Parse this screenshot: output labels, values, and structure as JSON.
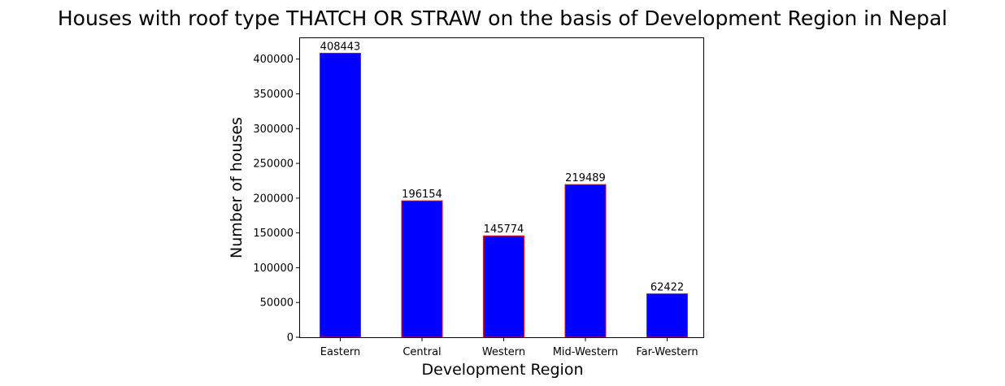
{
  "chart_data": {
    "type": "bar",
    "title": "Houses with roof type THATCH OR STRAW on the basis of Development Region in Nepal",
    "xlabel": "Development Region",
    "ylabel": "Number of houses",
    "categories": [
      "Eastern",
      "Central",
      "Western",
      "Mid-Western",
      "Far-Western"
    ],
    "values": [
      408443,
      196154,
      145774,
      219489,
      62422
    ],
    "data_labels": [
      "408443",
      "196154",
      "145774",
      "219489",
      "62422"
    ],
    "ylim": [
      0,
      430000
    ],
    "yticks": [
      0,
      50000,
      100000,
      150000,
      200000,
      250000,
      300000,
      350000,
      400000
    ],
    "ytick_labels": [
      "0",
      "50000",
      "100000",
      "150000",
      "200000",
      "250000",
      "300000",
      "350000",
      "400000"
    ],
    "grid": false,
    "bar_color": "#0000ff",
    "bar_edge_color": "#ff0000"
  }
}
